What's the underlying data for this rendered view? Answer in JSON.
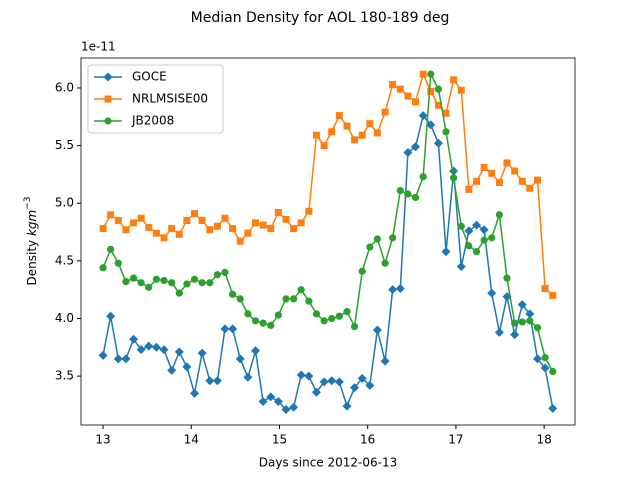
{
  "chart_data": {
    "type": "line",
    "title": "Median Density for AOL 180-189 deg",
    "xlabel": "Days since 2012-06-13",
    "ylabel": {
      "text": "Density",
      "unit": "kgm",
      "exponent": "−3"
    },
    "y_offset_label": "1e-11",
    "x": [
      13.0,
      13.086,
      13.173,
      13.259,
      13.346,
      13.432,
      13.518,
      13.605,
      13.691,
      13.778,
      13.864,
      13.95,
      14.037,
      14.123,
      14.21,
      14.296,
      14.382,
      14.469,
      14.555,
      14.642,
      14.728,
      14.814,
      14.901,
      14.987,
      15.074,
      15.16,
      15.246,
      15.333,
      15.419,
      15.506,
      15.592,
      15.678,
      15.765,
      15.851,
      15.938,
      16.024,
      16.11,
      16.197,
      16.283,
      16.37,
      16.456,
      16.542,
      16.629,
      16.715,
      16.802,
      16.888,
      16.974,
      17.061,
      17.147,
      17.234,
      17.32,
      17.406,
      17.493,
      17.579,
      17.666,
      17.752,
      17.838,
      17.925,
      18.011,
      18.098
    ],
    "series": [
      {
        "name": "GOCE",
        "color": "#1f77b4",
        "marker": "diamond",
        "values": [
          3.68,
          4.02,
          3.65,
          3.65,
          3.82,
          3.73,
          3.76,
          3.75,
          3.73,
          3.55,
          3.71,
          3.58,
          3.35,
          3.7,
          3.46,
          3.46,
          3.91,
          3.91,
          3.65,
          3.49,
          3.72,
          3.28,
          3.32,
          3.28,
          3.21,
          3.23,
          3.51,
          3.5,
          3.36,
          3.45,
          3.46,
          3.45,
          3.24,
          3.4,
          3.48,
          3.42,
          3.9,
          3.63,
          4.25,
          4.26,
          5.44,
          5.49,
          5.76,
          5.68,
          5.52,
          4.58,
          5.28,
          4.45,
          4.76,
          4.81,
          4.77,
          4.22,
          3.88,
          4.19,
          3.86,
          4.12,
          4.04,
          3.65,
          3.57,
          3.22
        ]
      },
      {
        "name": "NRLMSISE00",
        "color": "#ff7f0e",
        "marker": "square",
        "values": [
          4.78,
          4.9,
          4.85,
          4.77,
          4.83,
          4.87,
          4.79,
          4.74,
          4.7,
          4.78,
          4.73,
          4.85,
          4.91,
          4.85,
          4.77,
          4.8,
          4.87,
          4.78,
          4.67,
          4.74,
          4.83,
          4.81,
          4.78,
          4.92,
          4.86,
          4.78,
          4.83,
          4.93,
          5.59,
          5.5,
          5.62,
          5.76,
          5.67,
          5.55,
          5.59,
          5.69,
          5.61,
          5.79,
          6.03,
          5.99,
          5.93,
          5.88,
          6.12,
          5.97,
          5.85,
          5.78,
          6.07,
          5.98,
          5.12,
          5.19,
          5.31,
          5.26,
          5.18,
          5.35,
          5.28,
          5.19,
          5.13,
          5.2,
          4.26,
          4.2
        ]
      },
      {
        "name": "JB2008",
        "color": "#2ca02c",
        "marker": "circle",
        "values": [
          4.44,
          4.6,
          4.48,
          4.32,
          4.35,
          4.31,
          4.27,
          4.34,
          4.33,
          4.31,
          4.22,
          4.3,
          4.34,
          4.31,
          4.31,
          4.38,
          4.4,
          4.21,
          4.17,
          4.04,
          3.98,
          3.96,
          3.94,
          4.03,
          4.17,
          4.17,
          4.25,
          4.15,
          4.04,
          3.98,
          4.0,
          4.02,
          4.06,
          3.93,
          4.41,
          4.62,
          4.69,
          4.48,
          4.7,
          5.11,
          5.08,
          5.05,
          5.23,
          6.12,
          5.99,
          5.62,
          5.22,
          4.8,
          4.63,
          4.58,
          4.68,
          4.7,
          4.9,
          4.35,
          3.96,
          3.97,
          3.98,
          3.92,
          3.66,
          3.54
        ]
      }
    ],
    "xlim": [
      12.75,
      18.35
    ],
    "xticks": [
      13,
      14,
      15,
      16,
      17,
      18
    ],
    "ylim": [
      3.076,
      6.26
    ],
    "yticks": [
      3.5,
      {
        "value": 4,
        "label": "4.0"
      },
      4.5,
      {
        "value": 5,
        "label": "5.0"
      },
      5.5,
      {
        "value": 6,
        "label": "6.0"
      }
    ],
    "grid": false,
    "legend": "upper left"
  }
}
